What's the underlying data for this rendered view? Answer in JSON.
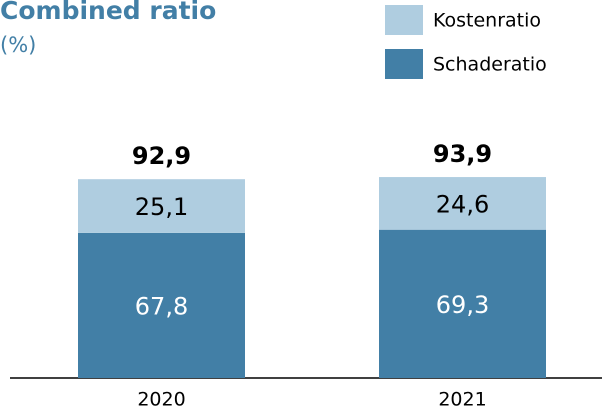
{
  "chart_data": {
    "type": "stacked_bar",
    "title": "Combined ratio",
    "subtitle": "(%)",
    "categories": [
      "2020",
      "2021"
    ],
    "series": [
      {
        "name": "Schaderatio",
        "color": "#427fa6",
        "values": [
          67.8,
          69.3
        ],
        "value_labels": [
          "67,8",
          "69,3"
        ]
      },
      {
        "name": "Kostenratio",
        "color": "#afcde0",
        "values": [
          25.1,
          24.6
        ],
        "value_labels": [
          "25,1",
          "24,6"
        ]
      }
    ],
    "totals": [
      92.9,
      93.9
    ],
    "total_labels": [
      "92,9",
      "93,9"
    ]
  }
}
